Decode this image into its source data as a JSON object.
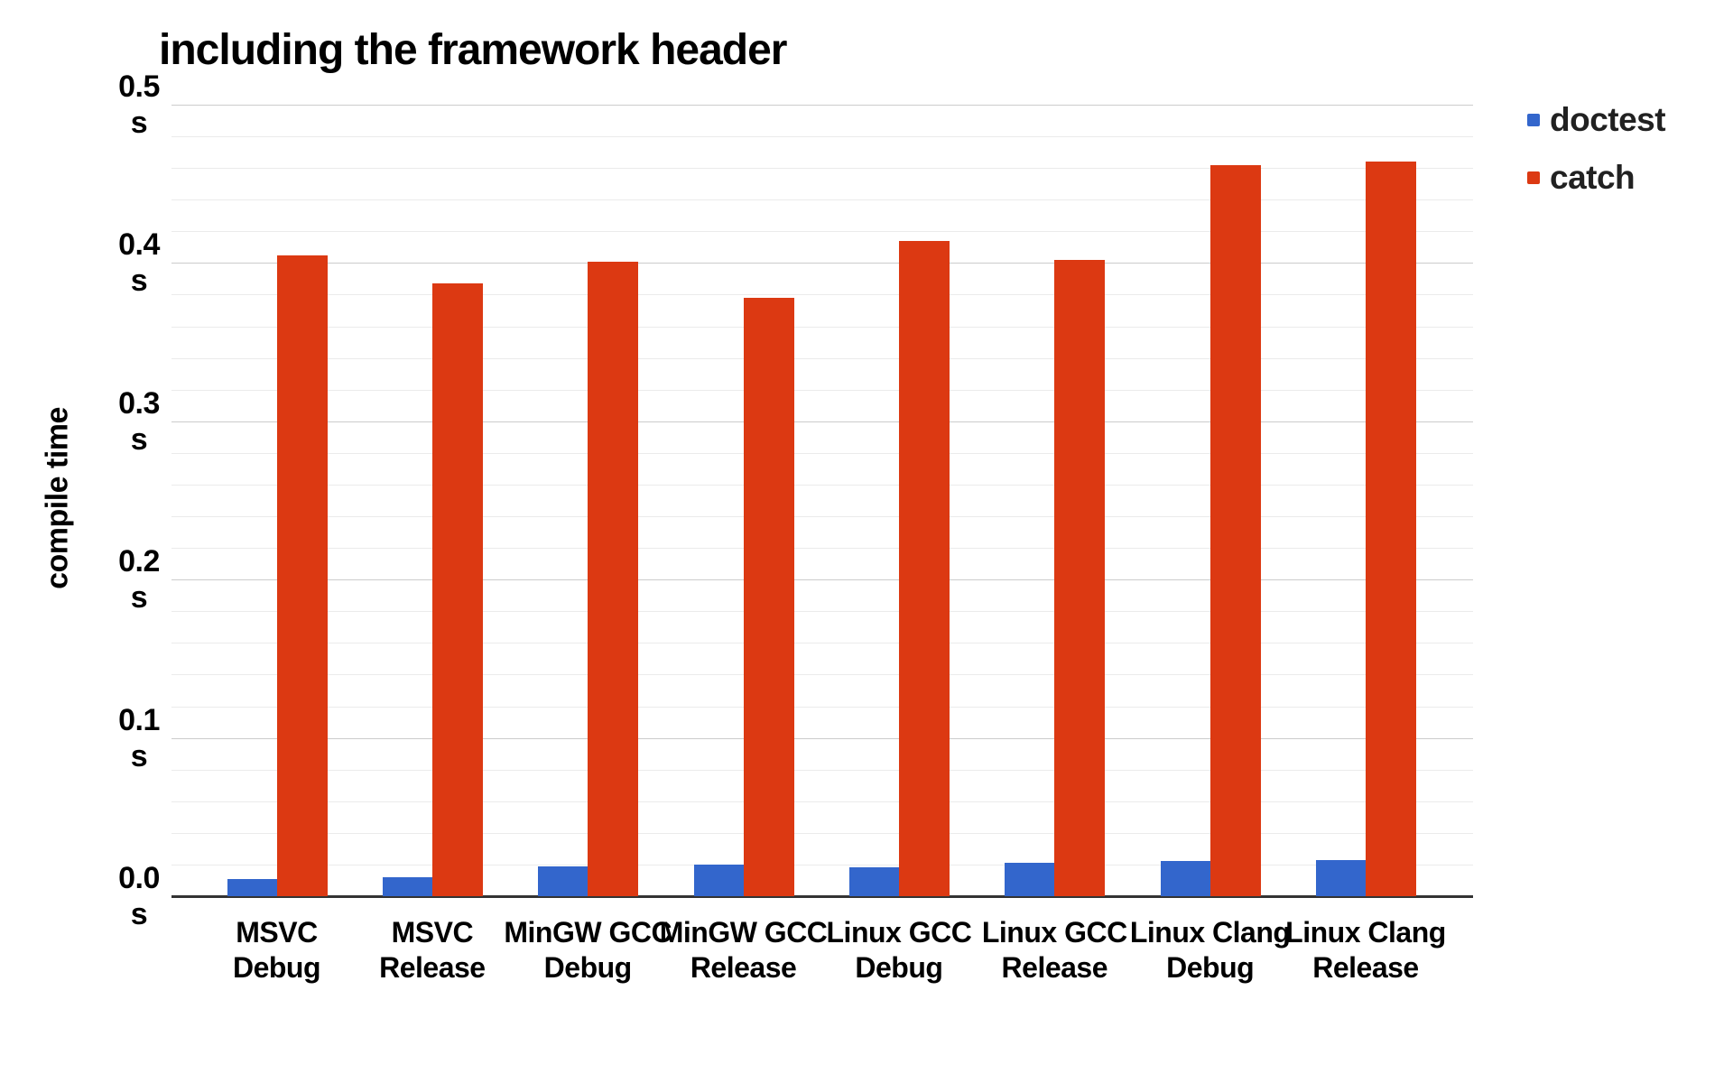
{
  "title": "including the framework header",
  "y_axis": {
    "title": "compile time",
    "ticks": [
      {
        "value": "0.5",
        "unit": "s"
      },
      {
        "value": "0.4",
        "unit": "s"
      },
      {
        "value": "0.3",
        "unit": "s"
      },
      {
        "value": "0.2",
        "unit": "s"
      },
      {
        "value": "0.1",
        "unit": "s"
      },
      {
        "value": "0.0",
        "unit": "s"
      }
    ]
  },
  "x_axis": {
    "tick_lines": [
      [
        "MSVC",
        "Debug"
      ],
      [
        "MSVC",
        "Release"
      ],
      [
        "MinGW GCC",
        "Debug"
      ],
      [
        "MinGW GCC",
        "Release"
      ],
      [
        "Linux GCC",
        "Debug"
      ],
      [
        "Linux GCC",
        "Release"
      ],
      [
        "Linux Clang",
        "Debug"
      ],
      [
        "Linux Clang",
        "Release"
      ]
    ]
  },
  "legend": {
    "items": [
      {
        "label": "doctest",
        "color": "#3366cc"
      },
      {
        "label": "catch",
        "color": "#dc3912"
      }
    ]
  },
  "colors": {
    "doctest": "#3366cc",
    "catch": "#dc3912",
    "major_gridline": "#cccccc",
    "minor_gridline": "#ebebeb",
    "axis_baseline": "#333333"
  },
  "chart_data": {
    "type": "bar",
    "title": "including the framework header",
    "xlabel": "",
    "ylabel": "compile time",
    "y_unit": "s",
    "ylim": [
      0,
      0.5
    ],
    "y_tick_interval": 0.1,
    "y_minor_tick_interval": 0.02,
    "grid": true,
    "legend_position": "top-right",
    "categories": [
      "MSVC Debug",
      "MSVC Release",
      "MinGW GCC Debug",
      "MinGW GCC Release",
      "Linux GCC Debug",
      "Linux GCC Release",
      "Linux Clang Debug",
      "Linux Clang Release"
    ],
    "series": [
      {
        "name": "doctest",
        "color": "#3366cc",
        "values": [
          0.011,
          0.012,
          0.019,
          0.02,
          0.018,
          0.021,
          0.022,
          0.023
        ]
      },
      {
        "name": "catch",
        "color": "#dc3912",
        "values": [
          0.405,
          0.387,
          0.401,
          0.378,
          0.414,
          0.402,
          0.462,
          0.464
        ]
      }
    ]
  }
}
